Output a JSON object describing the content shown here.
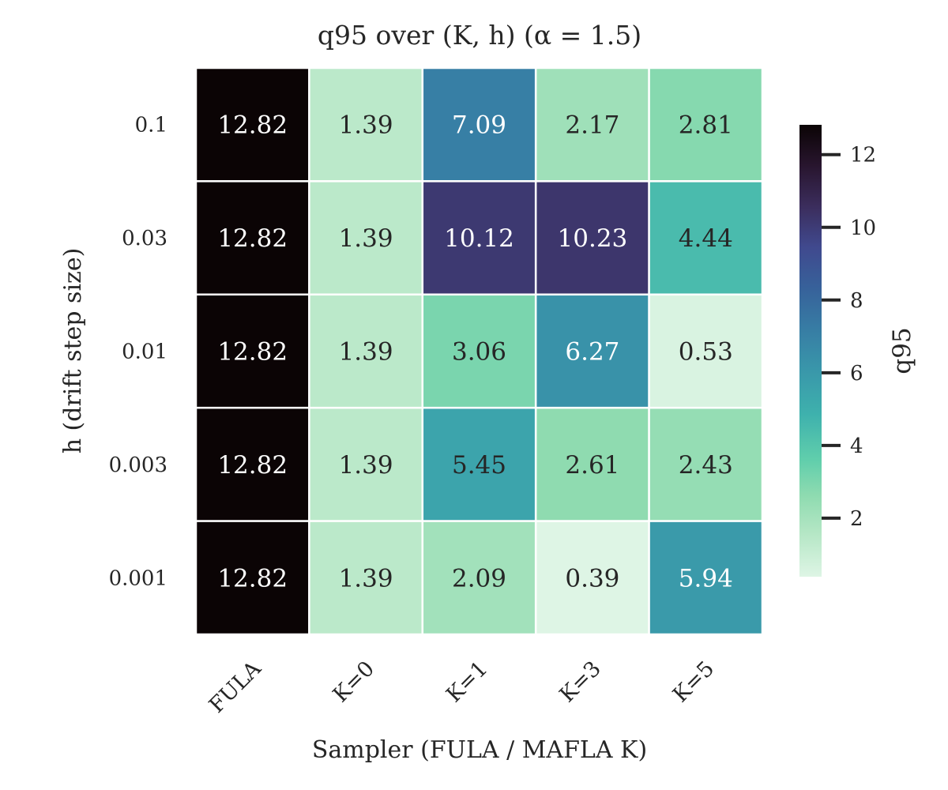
{
  "chart_data": {
    "type": "heatmap",
    "title": "q95 over (K, h) (α = 1.5)",
    "xlabel": "Sampler (FULA / MAFLA K)",
    "ylabel": "h (drift step size)",
    "x_categories": [
      "FULA",
      "K=0",
      "K=1",
      "K=3",
      "K=5"
    ],
    "y_categories": [
      "0.1",
      "0.03",
      "0.01",
      "0.003",
      "0.001"
    ],
    "values": [
      [
        12.82,
        1.39,
        7.09,
        2.17,
        2.81
      ],
      [
        12.82,
        1.39,
        10.12,
        10.23,
        4.44
      ],
      [
        12.82,
        1.39,
        3.06,
        6.27,
        0.53
      ],
      [
        12.82,
        1.39,
        5.45,
        2.61,
        2.43
      ],
      [
        12.82,
        1.39,
        2.09,
        0.39,
        5.94
      ]
    ],
    "colorbar": {
      "label": "q95",
      "vmin": 0.39,
      "vmax": 12.82,
      "ticks": [
        2,
        4,
        6,
        8,
        10,
        12
      ],
      "colormap": "mako_r"
    }
  }
}
